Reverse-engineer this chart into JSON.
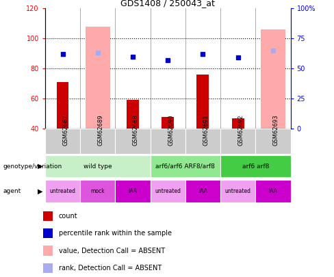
{
  "title": "GDS1408 / 250043_at",
  "samples": [
    "GSM62687",
    "GSM62689",
    "GSM62688",
    "GSM62690",
    "GSM62691",
    "GSM62692",
    "GSM62693"
  ],
  "count_values": [
    71,
    null,
    59,
    48,
    76,
    47,
    null
  ],
  "percentile_rank": [
    62,
    null,
    60,
    57,
    62,
    59,
    null
  ],
  "absent_value": [
    null,
    108,
    null,
    null,
    null,
    null,
    106
  ],
  "absent_rank": [
    null,
    63,
    null,
    null,
    null,
    null,
    65
  ],
  "ylim_left": [
    40,
    120
  ],
  "ylim_right": [
    0,
    100
  ],
  "yticks_left": [
    40,
    60,
    80,
    100,
    120
  ],
  "yticks_right": [
    0,
    25,
    50,
    75,
    100
  ],
  "ytick_labels_right": [
    "0",
    "25",
    "50",
    "75",
    "100%"
  ],
  "genotype_groups": [
    {
      "label": "wild type",
      "start": 0,
      "end": 2,
      "color": "#c8f0c8"
    },
    {
      "label": "arf6/arf6 ARF8/arf8",
      "start": 3,
      "end": 4,
      "color": "#90e890"
    },
    {
      "label": "arf6 arf8",
      "start": 5,
      "end": 6,
      "color": "#44cc44"
    }
  ],
  "agent_labels": [
    "untreated",
    "mock",
    "IAA",
    "untreated",
    "IAA",
    "untreated",
    "IAA"
  ],
  "agent_colors": [
    "#f0a0f0",
    "#dd55dd",
    "#cc00cc",
    "#f0a0f0",
    "#cc00cc",
    "#f0a0f0",
    "#cc00cc"
  ],
  "count_color": "#cc0000",
  "absent_value_color": "#ffaaaa",
  "percentile_color": "#0000cc",
  "absent_rank_color": "#aaaaee",
  "bar_bottom": 40,
  "sample_bg_color": "#cccccc"
}
